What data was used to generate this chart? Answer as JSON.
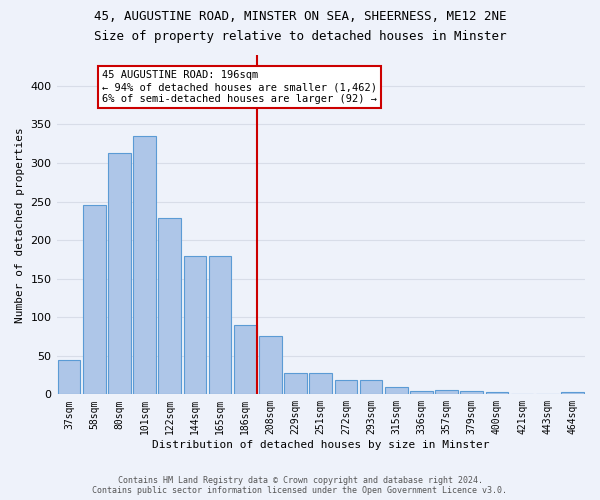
{
  "title1": "45, AUGUSTINE ROAD, MINSTER ON SEA, SHEERNESS, ME12 2NE",
  "title2": "Size of property relative to detached houses in Minster",
  "xlabel": "Distribution of detached houses by size in Minster",
  "ylabel": "Number of detached properties",
  "categories": [
    "37sqm",
    "58sqm",
    "80sqm",
    "101sqm",
    "122sqm",
    "144sqm",
    "165sqm",
    "186sqm",
    "208sqm",
    "229sqm",
    "251sqm",
    "272sqm",
    "293sqm",
    "315sqm",
    "336sqm",
    "357sqm",
    "379sqm",
    "400sqm",
    "421sqm",
    "443sqm",
    "464sqm"
  ],
  "values": [
    45,
    245,
    313,
    335,
    229,
    180,
    180,
    90,
    75,
    28,
    28,
    18,
    18,
    9,
    4,
    5,
    4,
    3,
    0,
    0,
    3
  ],
  "bar_color": "#aec6e8",
  "bar_edge_color": "#5b9bd5",
  "vline_color": "#cc0000",
  "annotation_title": "45 AUGUSTINE ROAD: 196sqm",
  "annotation_line1": "← 94% of detached houses are smaller (1,462)",
  "annotation_line2": "6% of semi-detached houses are larger (92) →",
  "annotation_box_color": "#cc0000",
  "ylim": [
    0,
    440
  ],
  "yticks": [
    0,
    50,
    100,
    150,
    200,
    250,
    300,
    350,
    400
  ],
  "footer1": "Contains HM Land Registry data © Crown copyright and database right 2024.",
  "footer2": "Contains public sector information licensed under the Open Government Licence v3.0.",
  "bg_color": "#eef2fa",
  "grid_color": "#d8dde8",
  "title1_fontsize": 9.0,
  "title2_fontsize": 9.0,
  "vline_bar_index": 7
}
